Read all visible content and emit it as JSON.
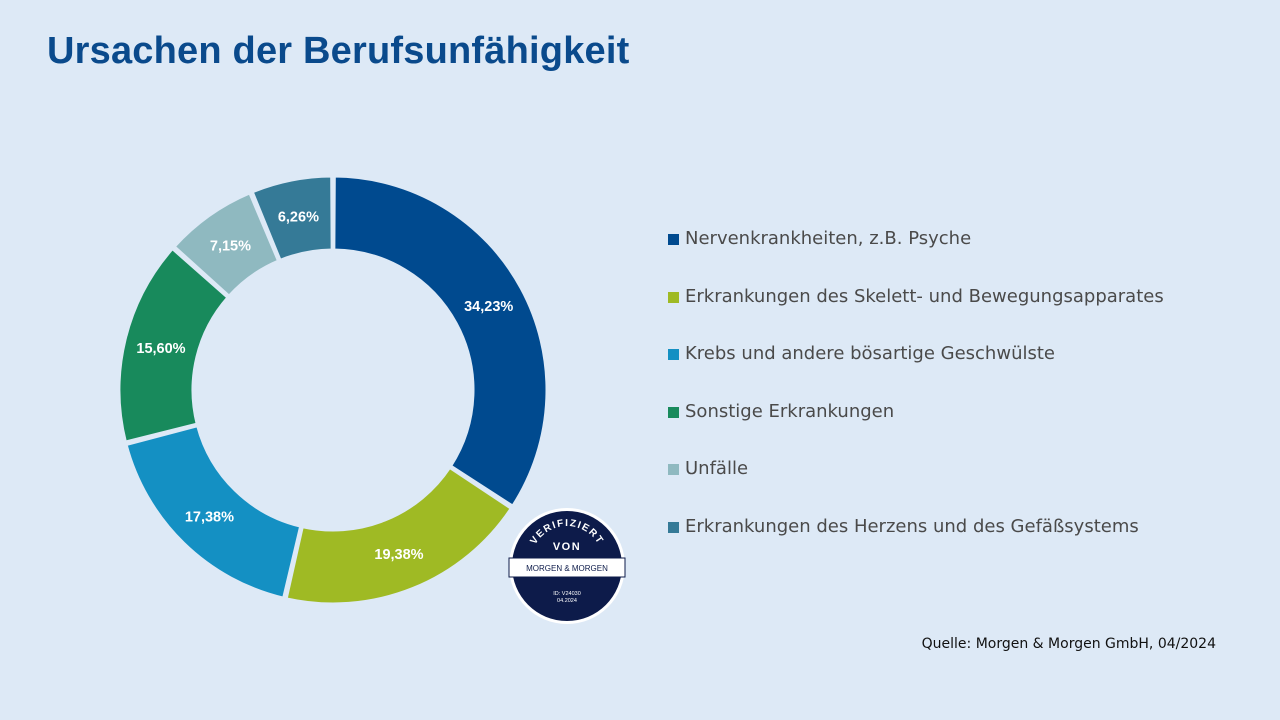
{
  "title": "Ursachen der Berufsunfähigkeit",
  "source": "Quelle: Morgen & Morgen GmbH, 04/2024",
  "seal": {
    "top_text": "VERIFIZIERT",
    "mid_text": "VON",
    "brand": "MORGEN & MORGEN",
    "id_text": "ID: V24030",
    "date_text": "04.2024"
  },
  "chart_data": {
    "type": "pie",
    "title": "Ursachen der Berufsunfähigkeit",
    "donut": true,
    "legend_position": "right",
    "slices": [
      {
        "label": "Nervenkrankheiten, z.B. Psyche",
        "value": 34.23,
        "display": "34,23%",
        "color": "#004a8f"
      },
      {
        "label": "Erkrankungen des Skelett- und Bewegungsapparates",
        "value": 19.38,
        "display": "19,38%",
        "color": "#9fba24"
      },
      {
        "label": "Krebs und andere bösartige Geschwülste",
        "value": 17.38,
        "display": "17,38%",
        "color": "#1490c3"
      },
      {
        "label": "Sonstige Erkrankungen",
        "value": 15.6,
        "display": "15,60%",
        "color": "#188a5c"
      },
      {
        "label": "Unfälle",
        "value": 7.15,
        "display": "7,15%",
        "color": "#8fb9c0"
      },
      {
        "label": "Erkrankungen des Herzens und des Gefäßsystems",
        "value": 6.26,
        "display": "6,26%",
        "color": "#357a97"
      }
    ]
  }
}
